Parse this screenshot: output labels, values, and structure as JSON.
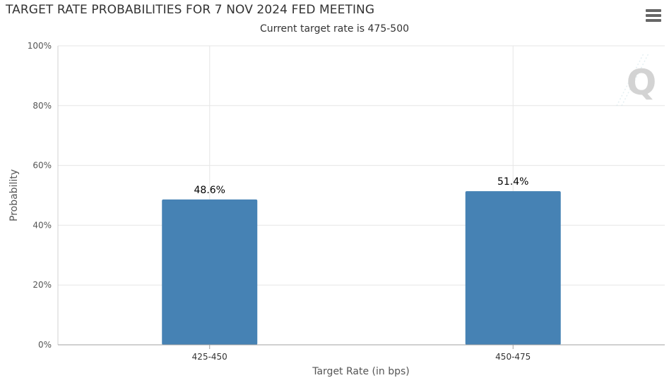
{
  "header": {
    "title": "TARGET RATE PROBABILITIES FOR 7 NOV 2024 FED MEETING",
    "subtitle": "Current target rate is 475-500",
    "menu_icon": "hamburger-menu-icon",
    "watermark_icon": "q-logo-icon"
  },
  "chart_data": {
    "type": "bar",
    "title": "TARGET RATE PROBABILITIES FOR 7 NOV 2024 FED MEETING",
    "subtitle": "Current target rate is 475-500",
    "xlabel": "Target Rate (in bps)",
    "ylabel": "Probability",
    "categories": [
      "425-450",
      "450-475"
    ],
    "values": [
      48.6,
      51.4
    ],
    "data_labels": [
      "48.6%",
      "51.4%"
    ],
    "ylim": [
      0,
      100
    ],
    "yticks": [
      0,
      20,
      40,
      60,
      80,
      100
    ],
    "ytick_labels": [
      "0%",
      "20%",
      "40%",
      "60%",
      "80%",
      "100%"
    ],
    "grid": true,
    "bar_color": "#4682b4"
  }
}
